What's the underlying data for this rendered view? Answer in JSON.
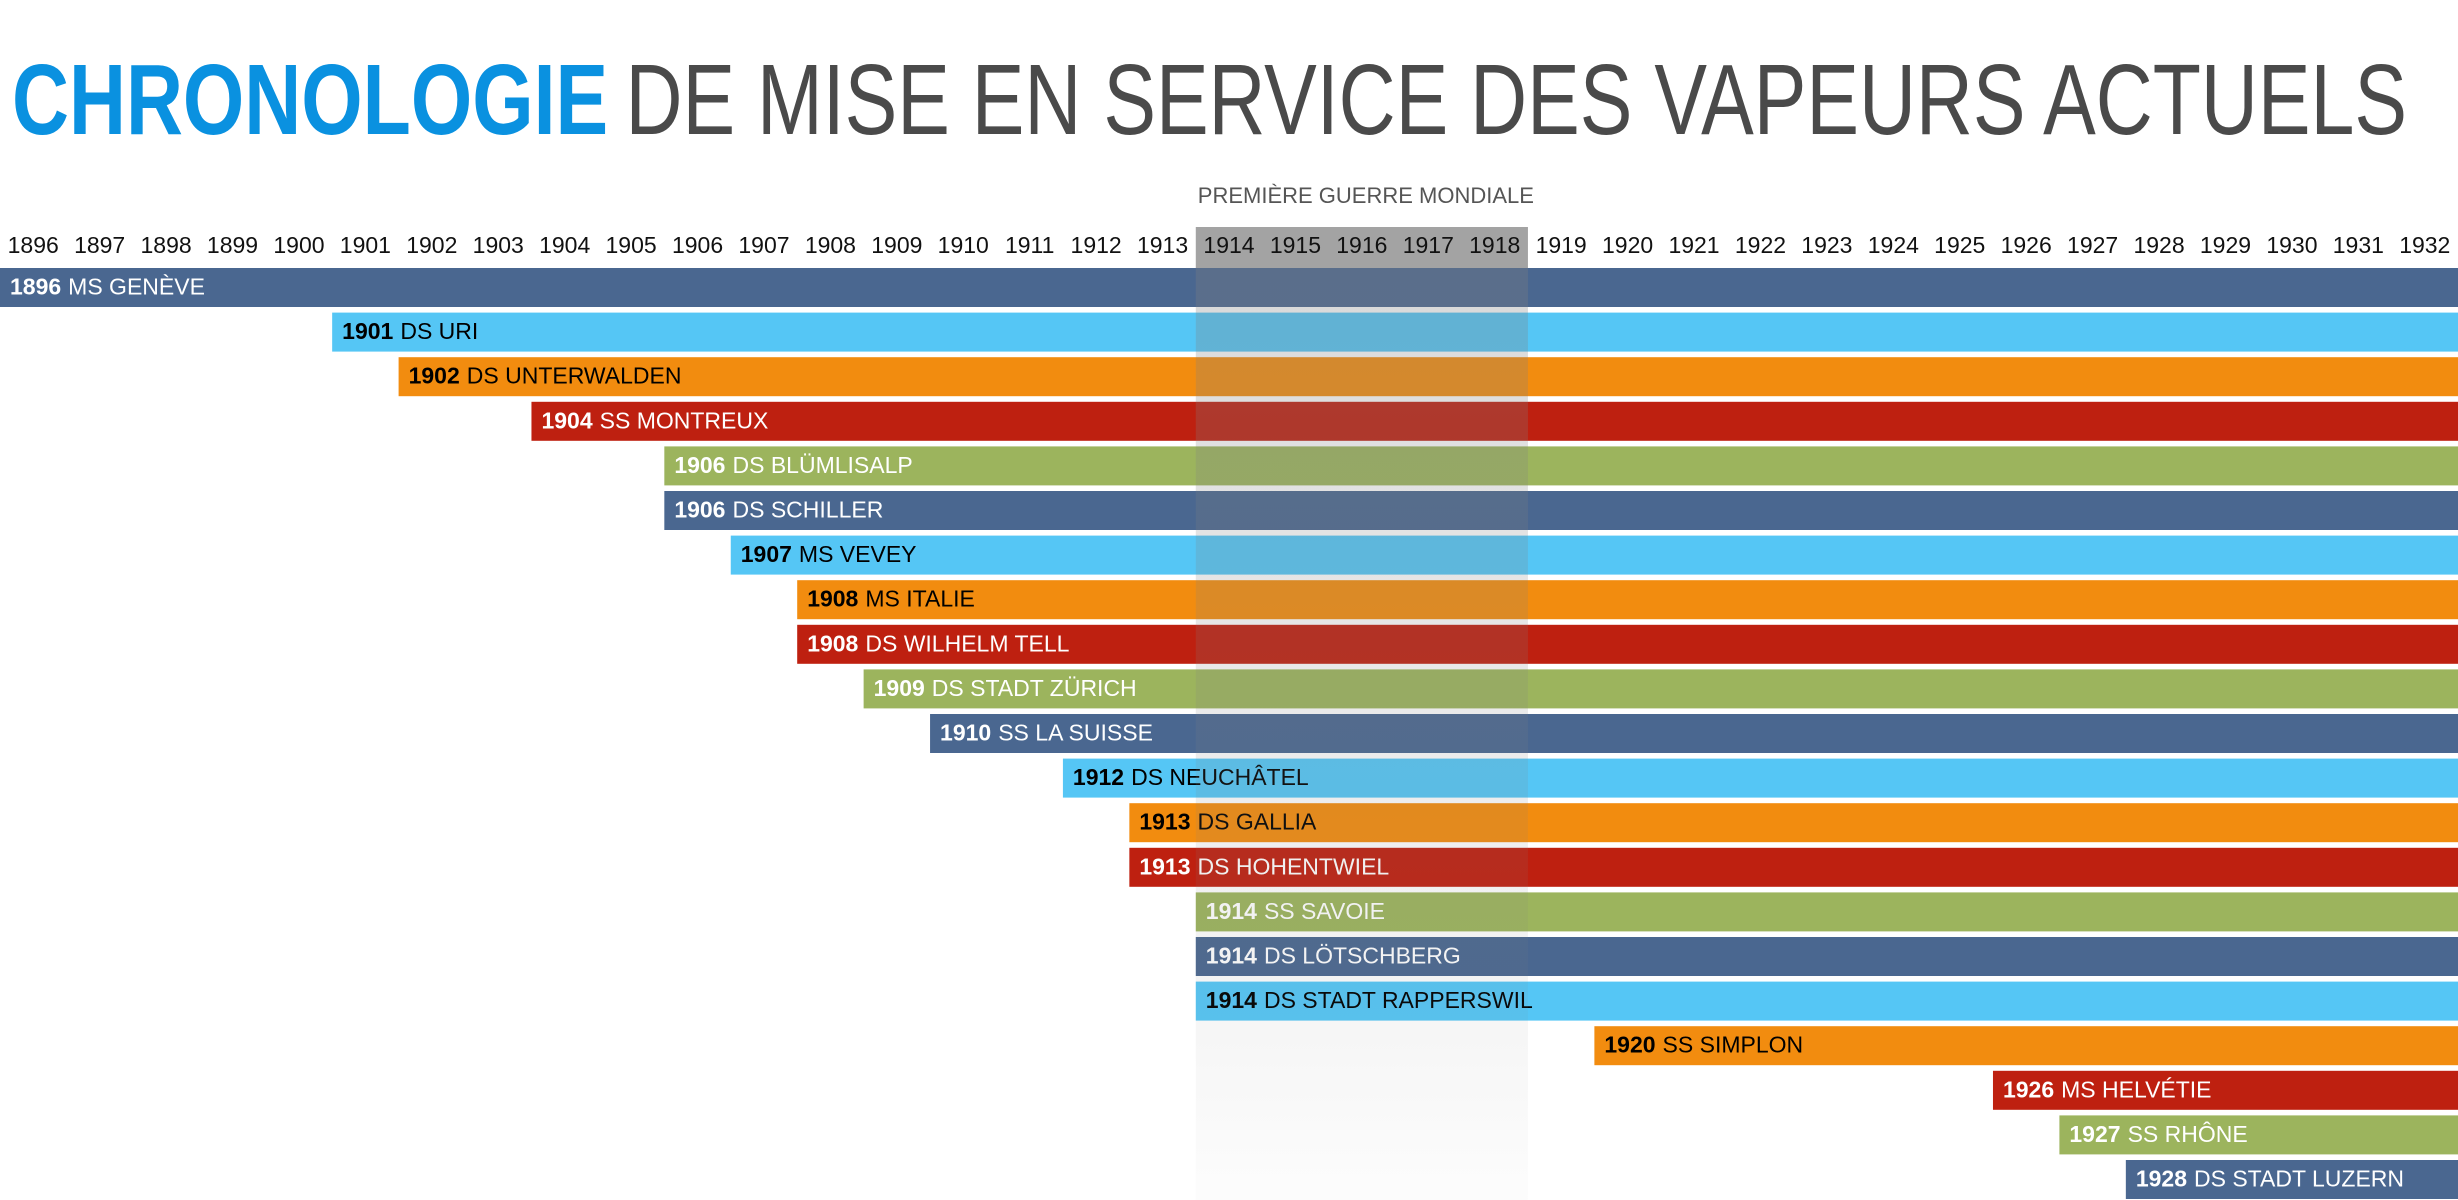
{
  "chart_data": {
    "type": "timeline",
    "title": "CHRONOLOGIE",
    "subtitle": "DE MISE EN SERVICE DES VAPEURS ACTUELS",
    "annotation": {
      "text": "PREMIÈRE GUERRE MONDIALE",
      "from": 1914,
      "to": 1918
    },
    "categories": [
      "MS GENÈVE",
      "DS URI",
      "DS UNTERWALDEN",
      "SS MONTREUX",
      "DS BLÜMLISALP",
      "DS SCHILLER",
      "MS VEVEY",
      "MS ITALIE",
      "DS WILHELM TELL",
      "DS STADT ZÜRICH",
      "SS LA SUISSE",
      "DS NEUCHÂTEL",
      "DS GALLIA",
      "DS HOHENTWIEL",
      "SS SAVOIE",
      "DS LÖTSCHBERG",
      "DS STADT RAPPERSWIL",
      "SS SIMPLON",
      "MS HELVÉTIE",
      "SS RHÔNE",
      "DS STADT LUZERN"
    ],
    "values": [
      1896,
      1901,
      1902,
      1904,
      1906,
      1906,
      1907,
      1908,
      1908,
      1909,
      1910,
      1912,
      1913,
      1913,
      1914,
      1914,
      1914,
      1920,
      1926,
      1927,
      1928
    ],
    "palette": [
      "#4a6790",
      "#55c6f5",
      "#f28c0f",
      "#be2010",
      "#9cb45d"
    ],
    "text_colors": [
      "#ffffff",
      "#000000",
      "#000000",
      "#ffffff",
      "#ffffff"
    ],
    "xlim": [
      1896,
      1933
    ],
    "xticks": [
      1896,
      1897,
      1898,
      1899,
      1900,
      1901,
      1902,
      1903,
      1904,
      1905,
      1906,
      1907,
      1908,
      1909,
      1910,
      1911,
      1912,
      1913,
      1914,
      1915,
      1916,
      1917,
      1918,
      1919,
      1920,
      1921,
      1922,
      1923,
      1924,
      1925,
      1926,
      1927,
      1928,
      1929,
      1930,
      1931,
      1932
    ]
  }
}
